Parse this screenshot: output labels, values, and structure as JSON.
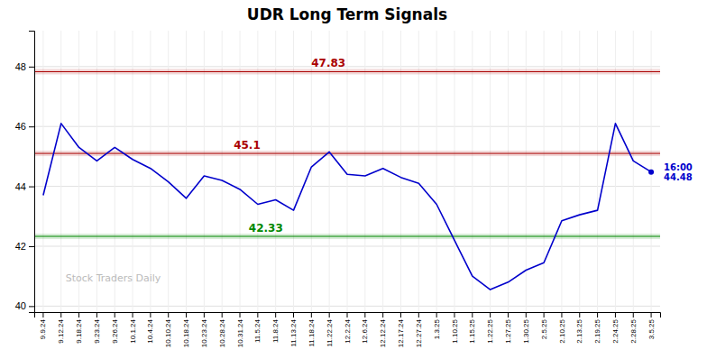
{
  "chart_data": {
    "type": "line",
    "title": "UDR Long Term Signals",
    "color": "#0000cc",
    "grid": true,
    "ylim": [
      39.8,
      49.2
    ],
    "yticks": [
      40,
      42,
      44,
      46,
      48
    ],
    "categories": [
      "9.9.24",
      "9.12.24",
      "9.18.24",
      "9.23.24",
      "9.26.24",
      "10.1.24",
      "10.4.24",
      "10.10.24",
      "10.18.24",
      "10.23.24",
      "10.28.24",
      "10.31.24",
      "11.5.24",
      "11.8.24",
      "11.13.24",
      "11.18.24",
      "11.22.24",
      "12.2.24",
      "12.6.24",
      "12.12.24",
      "12.17.24",
      "12.27.24",
      "1.3.25",
      "1.10.25",
      "1.15.25",
      "1.22.25",
      "1.27.25",
      "1.30.25",
      "2.5.25",
      "2.10.25",
      "2.13.25",
      "2.19.25",
      "2.24.25",
      "2.28.25",
      "3.5.25"
    ],
    "values": [
      43.7,
      46.1,
      45.3,
      44.85,
      45.3,
      44.9,
      44.6,
      44.15,
      43.6,
      44.35,
      44.2,
      43.9,
      43.4,
      43.55,
      43.2,
      44.65,
      45.15,
      44.4,
      44.35,
      44.6,
      44.3,
      44.1,
      43.4,
      42.2,
      41.0,
      40.55,
      40.8,
      41.2,
      41.45,
      42.85,
      43.05,
      43.2,
      46.1,
      44.85,
      44.48
    ],
    "reference_lines": [
      {
        "value": 47.83,
        "color": "#aa0000"
      },
      {
        "value": 42.33,
        "color": "#008800"
      },
      {
        "value": 45.1,
        "color": "#aa0000"
      }
    ],
    "annotations": [
      {
        "text": "16:00\n44.48",
        "x": "3.5.25",
        "y": 44.48,
        "color": "#0000cc"
      },
      {
        "text": "Stock Traders Daily",
        "color": "#bbbbbb"
      }
    ]
  }
}
